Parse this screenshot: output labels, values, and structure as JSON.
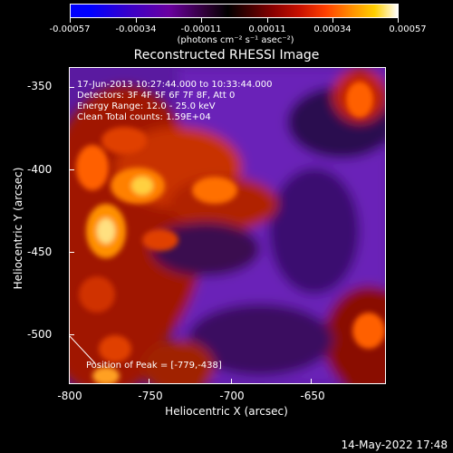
{
  "colorbar": {
    "tick_labels": [
      "-0.00057",
      "-0.00034",
      "-0.00011",
      "0.00011",
      "0.00034",
      "0.00057"
    ],
    "units": "(photons cm⁻² s⁻¹ asec⁻²)"
  },
  "title": "Reconstructed RHESSI Image",
  "annotations": {
    "time_range": "17-Jun-2013 10:27:44.000 to 10:33:44.000",
    "detectors": "Detectors: 3F 4F 5F 6F 7F 8F, Att 0",
    "energy": "Energy Range: 12.0 - 25.0 keV",
    "clean": "Clean     Total counts: 1.59E+04",
    "peak": "Position of Peak = [-779,-438]"
  },
  "axes": {
    "x_title": "Heliocentric X (arcsec)",
    "y_title": "Heliocentric Y (arcsec)",
    "x_ticks": [
      "-800",
      "-750",
      "-700",
      "-650"
    ],
    "y_ticks": [
      "-350",
      "-400",
      "-450",
      "-500"
    ]
  },
  "date_stamp": "14-May-2022 17:48"
}
